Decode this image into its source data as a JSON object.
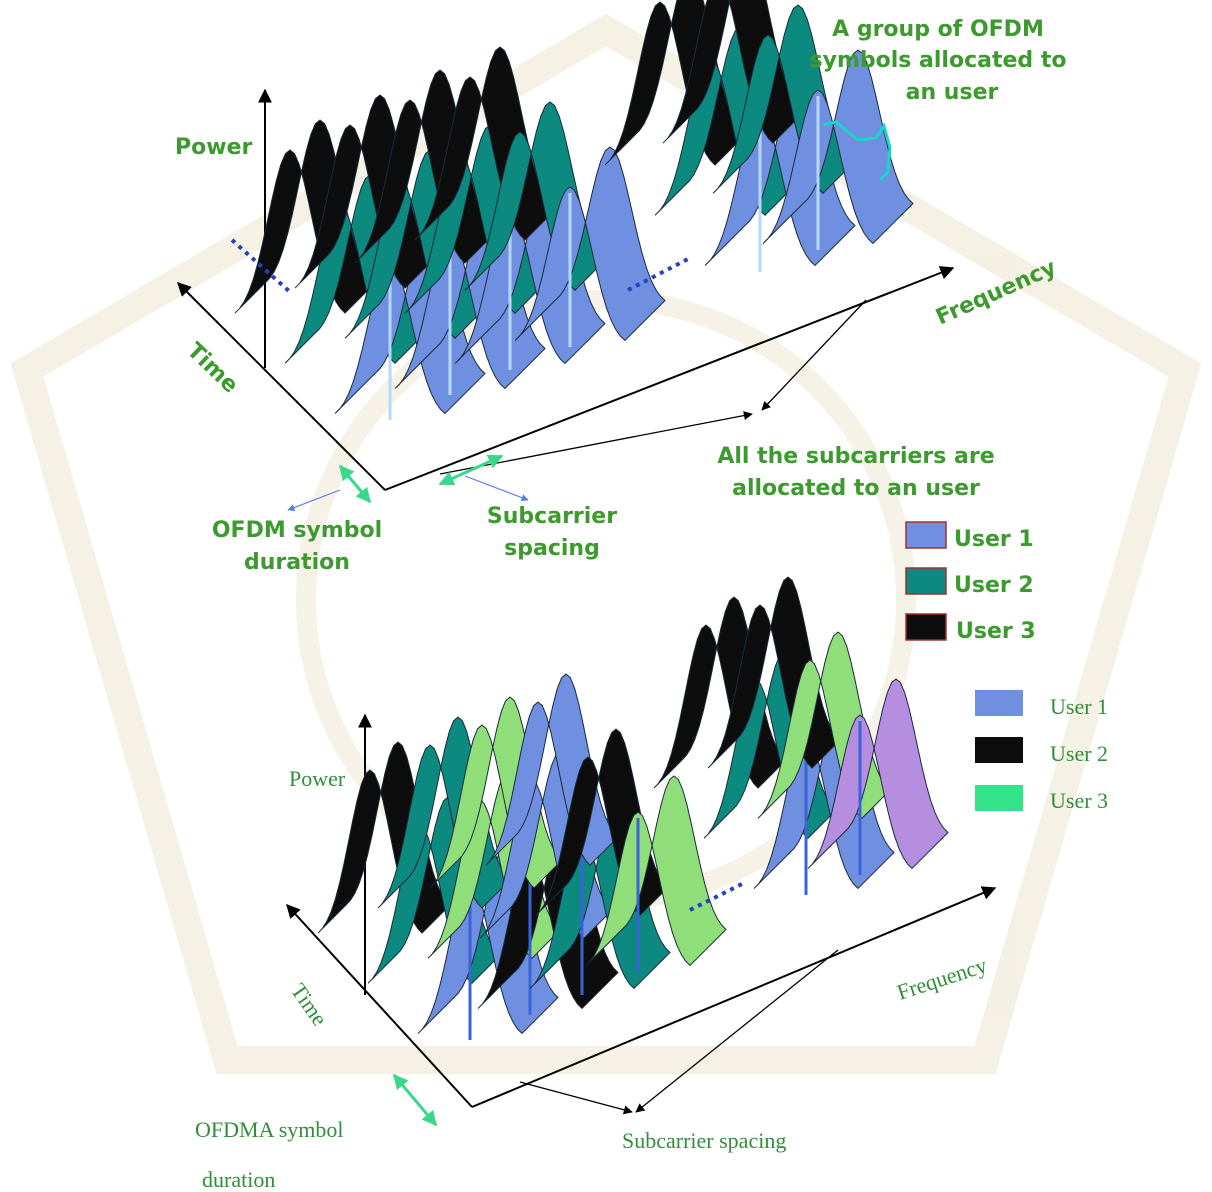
{
  "colors": {
    "user_blue": "#6f8fe0",
    "user_teal": "#0d8a80",
    "user_black": "#0d0d0d",
    "user_green": "#8fde7a",
    "user_purple": "#b68ee0",
    "text_green": "#3c9a2e",
    "watermark": "#e7e0c6"
  },
  "top_diagram": {
    "axis_power": "Power",
    "axis_time": "Time",
    "axis_frequency": "Frequency",
    "annotation_group": [
      "A group of OFDM",
      "symbols allocated to",
      "an user"
    ],
    "annotation_all": [
      "All the subcarriers are",
      "allocated to an user"
    ],
    "label_symbol_duration": [
      "OFDM symbol",
      "duration"
    ],
    "label_subcarrier_spacing": [
      "Subcarrier",
      "spacing"
    ],
    "legend": [
      {
        "label": "User 1",
        "color": "#6f8fe0"
      },
      {
        "label": "User 2",
        "color": "#0d8a80"
      },
      {
        "label": "User 3",
        "color": "#0d0d0d"
      }
    ]
  },
  "bottom_diagram": {
    "axis_power": "Power",
    "axis_time": "Time",
    "axis_frequency": "Frequency",
    "label_symbol_duration": [
      "OFDMA symbol",
      "duration"
    ],
    "label_subcarrier_spacing": "Subcarrier spacing",
    "legend": [
      {
        "label": "User 1",
        "color": "#6f8fe0"
      },
      {
        "label": "User 2",
        "color": "#0d0d0d"
      },
      {
        "label": "User 3",
        "color": "#33e38a"
      }
    ]
  }
}
